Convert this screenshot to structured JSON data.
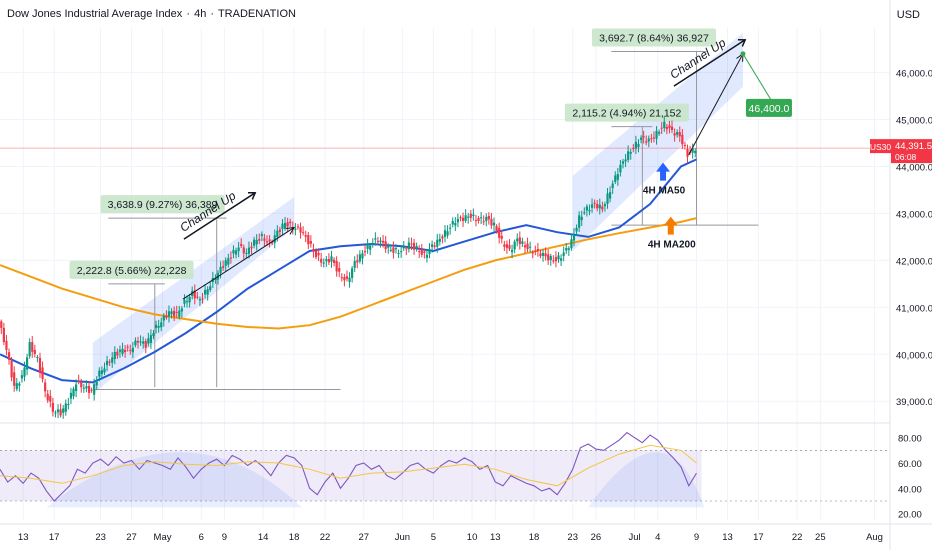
{
  "header": {
    "title": "Dow Jones Industrial Average Index",
    "separator": "·",
    "timeframe": "4h",
    "source": "TRADENATION",
    "currency": "USD"
  },
  "chart_data": {
    "type": "candlestick",
    "symbol": "US30",
    "y_ticks": [
      "46,000.0",
      "45,000.0",
      "44,000.0",
      "43,000.0",
      "42,000.0",
      "41,000.0",
      "40,000.0",
      "39,000.0"
    ],
    "y_tick_values": [
      46000,
      45000,
      44000,
      43000,
      42000,
      41000,
      40000,
      39000
    ],
    "ylim": [
      38600,
      46950
    ],
    "x_ticks": [
      "13",
      "17",
      "23",
      "27",
      "May",
      "6",
      "9",
      "14",
      "18",
      "22",
      "27",
      "Jun",
      "5",
      "10",
      "13",
      "18",
      "23",
      "26",
      "Jul",
      "4",
      "9",
      "13",
      "17",
      "22",
      "25",
      "Aug"
    ],
    "x_tick_days": [
      13,
      17,
      23,
      27,
      31,
      36,
      39,
      44,
      48,
      52,
      57,
      62,
      66,
      71,
      74,
      79,
      84,
      87,
      92,
      95,
      100,
      104,
      108,
      113,
      116,
      123
    ],
    "xlim": [
      10,
      125
    ],
    "last_price": {
      "label": "44,391.5",
      "value": 44391.5,
      "countdown": "06:08",
      "color": "#f23645"
    },
    "price_path": [
      [
        10,
        40700
      ],
      [
        11,
        40100
      ],
      [
        12,
        39300
      ],
      [
        13,
        39500
      ],
      [
        14,
        40200
      ],
      [
        15,
        39900
      ],
      [
        16,
        39200
      ],
      [
        17,
        38800
      ],
      [
        18,
        38750
      ],
      [
        19,
        39000
      ],
      [
        20,
        39400
      ],
      [
        21,
        39300
      ],
      [
        22,
        39200
      ],
      [
        23,
        39600
      ],
      [
        24,
        39800
      ],
      [
        25,
        40000
      ],
      [
        26,
        40100
      ],
      [
        27,
        40100
      ],
      [
        28,
        40300
      ],
      [
        29,
        40200
      ],
      [
        30,
        40500
      ],
      [
        31,
        40700
      ],
      [
        32,
        40900
      ],
      [
        33,
        40850
      ],
      [
        34,
        41100
      ],
      [
        35,
        41300
      ],
      [
        36,
        41150
      ],
      [
        37,
        41400
      ],
      [
        38,
        41650
      ],
      [
        39,
        41900
      ],
      [
        40,
        42100
      ],
      [
        41,
        42300
      ],
      [
        42,
        42150
      ],
      [
        43,
        42400
      ],
      [
        44,
        42500
      ],
      [
        45,
        42350
      ],
      [
        46,
        42600
      ],
      [
        47,
        42800
      ],
      [
        48,
        42700
      ],
      [
        49,
        42650
      ],
      [
        50,
        42400
      ],
      [
        51,
        42100
      ],
      [
        52,
        41950
      ],
      [
        53,
        42050
      ],
      [
        54,
        41700
      ],
      [
        55,
        41550
      ],
      [
        56,
        41950
      ],
      [
        57,
        42150
      ],
      [
        58,
        42350
      ],
      [
        59,
        42450
      ],
      [
        60,
        42300
      ],
      [
        61,
        42200
      ],
      [
        62,
        42200
      ],
      [
        63,
        42350
      ],
      [
        64,
        42250
      ],
      [
        65,
        42100
      ],
      [
        66,
        42300
      ],
      [
        67,
        42450
      ],
      [
        68,
        42650
      ],
      [
        69,
        42850
      ],
      [
        70,
        42900
      ],
      [
        71,
        42950
      ],
      [
        72,
        42850
      ],
      [
        73,
        42900
      ],
      [
        74,
        42750
      ],
      [
        75,
        42400
      ],
      [
        76,
        42200
      ],
      [
        77,
        42450
      ],
      [
        78,
        42300
      ],
      [
        79,
        42200
      ],
      [
        80,
        42150
      ],
      [
        81,
        42050
      ],
      [
        82,
        42000
      ],
      [
        83,
        42150
      ],
      [
        84,
        42400
      ],
      [
        85,
        42900
      ],
      [
        86,
        43100
      ],
      [
        87,
        43200
      ],
      [
        88,
        43100
      ],
      [
        89,
        43500
      ],
      [
        90,
        43900
      ],
      [
        91,
        44200
      ],
      [
        92,
        44400
      ],
      [
        93,
        44600
      ],
      [
        94,
        44550
      ],
      [
        95,
        44700
      ],
      [
        96,
        44900
      ],
      [
        97,
        44750
      ],
      [
        98,
        44650
      ],
      [
        99,
        44250
      ],
      [
        100,
        44391.5
      ]
    ],
    "series": [
      {
        "name": "4H MA50",
        "color": "#2458d6",
        "points": [
          [
            10,
            40000
          ],
          [
            14,
            39700
          ],
          [
            18,
            39450
          ],
          [
            22,
            39400
          ],
          [
            26,
            39700
          ],
          [
            30,
            40050
          ],
          [
            34,
            40450
          ],
          [
            38,
            40900
          ],
          [
            42,
            41400
          ],
          [
            46,
            41800
          ],
          [
            50,
            42200
          ],
          [
            54,
            42300
          ],
          [
            58,
            42350
          ],
          [
            62,
            42300
          ],
          [
            66,
            42200
          ],
          [
            70,
            42400
          ],
          [
            74,
            42600
          ],
          [
            78,
            42750
          ],
          [
            82,
            42600
          ],
          [
            86,
            42500
          ],
          [
            90,
            42700
          ],
          [
            94,
            43200
          ],
          [
            98,
            44000
          ],
          [
            100,
            44150
          ]
        ]
      },
      {
        "name": "4H MA200",
        "color": "#f59d0e",
        "points": [
          [
            10,
            41900
          ],
          [
            14,
            41650
          ],
          [
            18,
            41400
          ],
          [
            22,
            41200
          ],
          [
            26,
            41000
          ],
          [
            30,
            40850
          ],
          [
            34,
            40750
          ],
          [
            38,
            40650
          ],
          [
            42,
            40580
          ],
          [
            46,
            40550
          ],
          [
            50,
            40620
          ],
          [
            54,
            40800
          ],
          [
            58,
            41050
          ],
          [
            62,
            41300
          ],
          [
            66,
            41550
          ],
          [
            70,
            41800
          ],
          [
            74,
            42000
          ],
          [
            78,
            42150
          ],
          [
            82,
            42300
          ],
          [
            86,
            42450
          ],
          [
            90,
            42580
          ],
          [
            94,
            42700
          ],
          [
            98,
            42820
          ],
          [
            100,
            42900
          ]
        ]
      }
    ],
    "channels": [
      {
        "label": "Channel Up",
        "color": "#2962ff",
        "low_start": [
          22,
          39150
        ],
        "low_end": [
          48,
          42700
        ],
        "high_start": [
          22,
          40250
        ],
        "high_end": [
          48,
          43350
        ]
      },
      {
        "label": "Channel Up",
        "color": "#2962ff",
        "low_start": [
          84,
          42200
        ],
        "low_end": [
          106,
          45700
        ],
        "high_start": [
          84,
          43800
        ],
        "high_end": [
          106,
          46850
        ]
      }
    ],
    "projections": [
      {
        "from": [
          22,
          39150
        ],
        "to": [
          48,
          42700
        ]
      },
      {
        "from": [
          99,
          44250
        ],
        "to": [
          106,
          46400
        ]
      }
    ],
    "measures": [
      {
        "label": "2,222.8 (5.66%) 22,228",
        "from": [
          24,
          39300
        ],
        "to": [
          30,
          41500
        ],
        "x_end": 30
      },
      {
        "label": "3,638.9 (9.27%) 36,389",
        "from": [
          24,
          39300
        ],
        "to": [
          38,
          42900
        ],
        "x_end": 38
      },
      {
        "label": "2,115.2 (4.94%) 21,152",
        "from": [
          89,
          42750
        ],
        "to": [
          93,
          44850
        ],
        "x_end": 93
      },
      {
        "label": "3,692.7 (8.64%) 36,927",
        "from": [
          89,
          42750
        ],
        "to": [
          100,
          46450
        ],
        "x_end": 100
      }
    ],
    "horizontal_levels": [
      {
        "value": 39250,
        "from_x": 22,
        "to_x": 54
      },
      {
        "value": 42750,
        "from_x": 89,
        "to_x": 108
      }
    ],
    "target": {
      "label": "46,400.0",
      "value": 46400,
      "x": 106,
      "color": "#34a853"
    },
    "annotations": [
      {
        "label": "4H MA50",
        "x": 98,
        "y": 43700,
        "arrow": "up",
        "color": "#2962ff"
      },
      {
        "label": "4H MA200",
        "x": 99,
        "y": 42550,
        "arrow": "up",
        "color": "#f57c00"
      }
    ],
    "rsi": {
      "y_ticks": [
        "80.00",
        "60.00",
        "40.00",
        "20.00"
      ],
      "y_tick_values": [
        80,
        60,
        40,
        20
      ],
      "ylim": [
        15,
        90
      ],
      "band": [
        30,
        70
      ],
      "line_color": "#7e57c2",
      "ma_color": "#f5c542",
      "values": [
        [
          10,
          55
        ],
        [
          11,
          45
        ],
        [
          12,
          50
        ],
        [
          13,
          44
        ],
        [
          14,
          52
        ],
        [
          15,
          48
        ],
        [
          16,
          38
        ],
        [
          17,
          30
        ],
        [
          18,
          36
        ],
        [
          19,
          42
        ],
        [
          20,
          55
        ],
        [
          21,
          52
        ],
        [
          22,
          60
        ],
        [
          23,
          63
        ],
        [
          24,
          58
        ],
        [
          25,
          65
        ],
        [
          26,
          60
        ],
        [
          27,
          62
        ],
        [
          28,
          55
        ],
        [
          29,
          62
        ],
        [
          30,
          60
        ],
        [
          31,
          58
        ],
        [
          32,
          55
        ],
        [
          33,
          64
        ],
        [
          34,
          57
        ],
        [
          35,
          48
        ],
        [
          36,
          55
        ],
        [
          37,
          60
        ],
        [
          38,
          63
        ],
        [
          39,
          58
        ],
        [
          40,
          66
        ],
        [
          41,
          63
        ],
        [
          42,
          58
        ],
        [
          43,
          62
        ],
        [
          44,
          57
        ],
        [
          45,
          50
        ],
        [
          46,
          60
        ],
        [
          47,
          66
        ],
        [
          48,
          64
        ],
        [
          49,
          58
        ],
        [
          50,
          40
        ],
        [
          51,
          35
        ],
        [
          52,
          45
        ],
        [
          53,
          52
        ],
        [
          54,
          40
        ],
        [
          55,
          48
        ],
        [
          56,
          58
        ],
        [
          57,
          60
        ],
        [
          58,
          55
        ],
        [
          59,
          58
        ],
        [
          60,
          50
        ],
        [
          61,
          47
        ],
        [
          62,
          52
        ],
        [
          63,
          58
        ],
        [
          64,
          60
        ],
        [
          65,
          55
        ],
        [
          66,
          52
        ],
        [
          67,
          58
        ],
        [
          68,
          62
        ],
        [
          69,
          60
        ],
        [
          70,
          64
        ],
        [
          71,
          61
        ],
        [
          72,
          55
        ],
        [
          73,
          58
        ],
        [
          74,
          45
        ],
        [
          75,
          42
        ],
        [
          76,
          50
        ],
        [
          77,
          47
        ],
        [
          78,
          44
        ],
        [
          79,
          42
        ],
        [
          80,
          38
        ],
        [
          81,
          40
        ],
        [
          82,
          35
        ],
        [
          83,
          44
        ],
        [
          84,
          55
        ],
        [
          85,
          72
        ],
        [
          86,
          75
        ],
        [
          87,
          71
        ],
        [
          88,
          70
        ],
        [
          89,
          74
        ],
        [
          90,
          78
        ],
        [
          91,
          84
        ],
        [
          92,
          80
        ],
        [
          93,
          76
        ],
        [
          94,
          82
        ],
        [
          95,
          78
        ],
        [
          96,
          70
        ],
        [
          97,
          64
        ],
        [
          98,
          57
        ],
        [
          99,
          42
        ],
        [
          100,
          52
        ]
      ],
      "ma_values": [
        [
          10,
          50
        ],
        [
          14,
          48
        ],
        [
          18,
          44
        ],
        [
          22,
          50
        ],
        [
          26,
          58
        ],
        [
          30,
          61
        ],
        [
          34,
          59
        ],
        [
          38,
          58
        ],
        [
          42,
          61
        ],
        [
          46,
          60
        ],
        [
          50,
          55
        ],
        [
          54,
          48
        ],
        [
          58,
          52
        ],
        [
          62,
          53
        ],
        [
          66,
          56
        ],
        [
          70,
          59
        ],
        [
          74,
          55
        ],
        [
          78,
          47
        ],
        [
          82,
          42
        ],
        [
          86,
          56
        ],
        [
          90,
          67
        ],
        [
          94,
          74
        ],
        [
          98,
          70
        ],
        [
          100,
          60
        ]
      ]
    }
  }
}
